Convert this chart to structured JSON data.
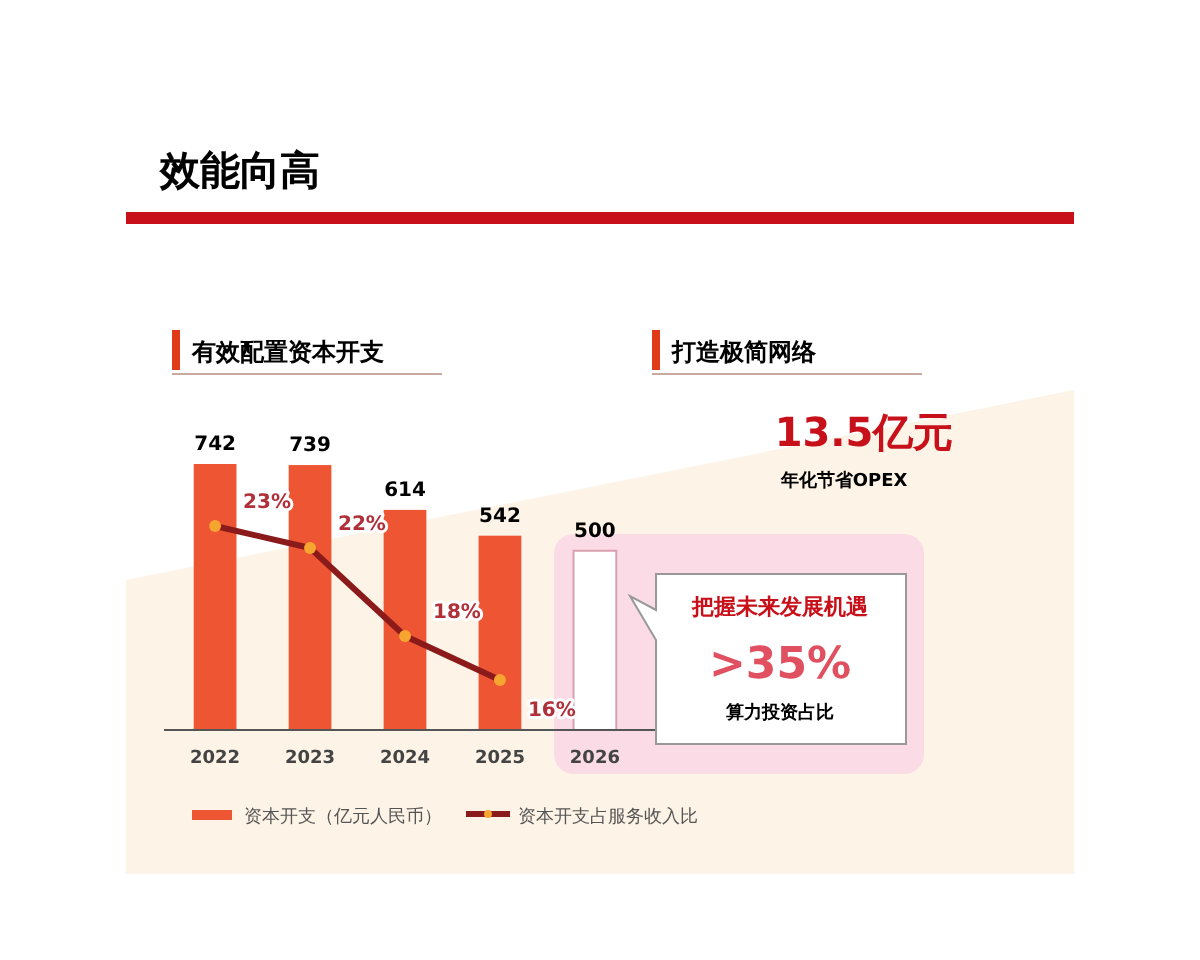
{
  "chart_data": {
    "type": "bar",
    "title": "效能向高",
    "subtitle": "有效配置资本开支",
    "categories": [
      "2022",
      "2023",
      "2024",
      "2025",
      "2026"
    ],
    "series": [
      {
        "name": "资本开支（亿元人民币）",
        "color": "#ee5533",
        "colors": [
          "#ee5533",
          "#ee5533",
          "#ee5533",
          "#ee5533",
          "#ffffff"
        ],
        "values": [
          742,
          739,
          614,
          542,
          500
        ],
        "value_labels": [
          "742",
          "739",
          "614",
          "542",
          "500"
        ]
      },
      {
        "name": "资本开支占服务收入比",
        "type": "line",
        "axis": "y2",
        "color": "#8b1a1a",
        "values": [
          23,
          22,
          18,
          16,
          null
        ],
        "value_labels": [
          "23%",
          "22%",
          "18%",
          "16%",
          null
        ]
      }
    ],
    "tick_labels": "x",
    "marker": "circle",
    "line_style": "solid",
    "legend": "bottom",
    "annotations": [
      "打造极简网络",
      "13.5亿元",
      "年化节省OPEX",
      "把握未来发展机遇",
      ">35%",
      "算力投资占比"
    ]
  }
}
